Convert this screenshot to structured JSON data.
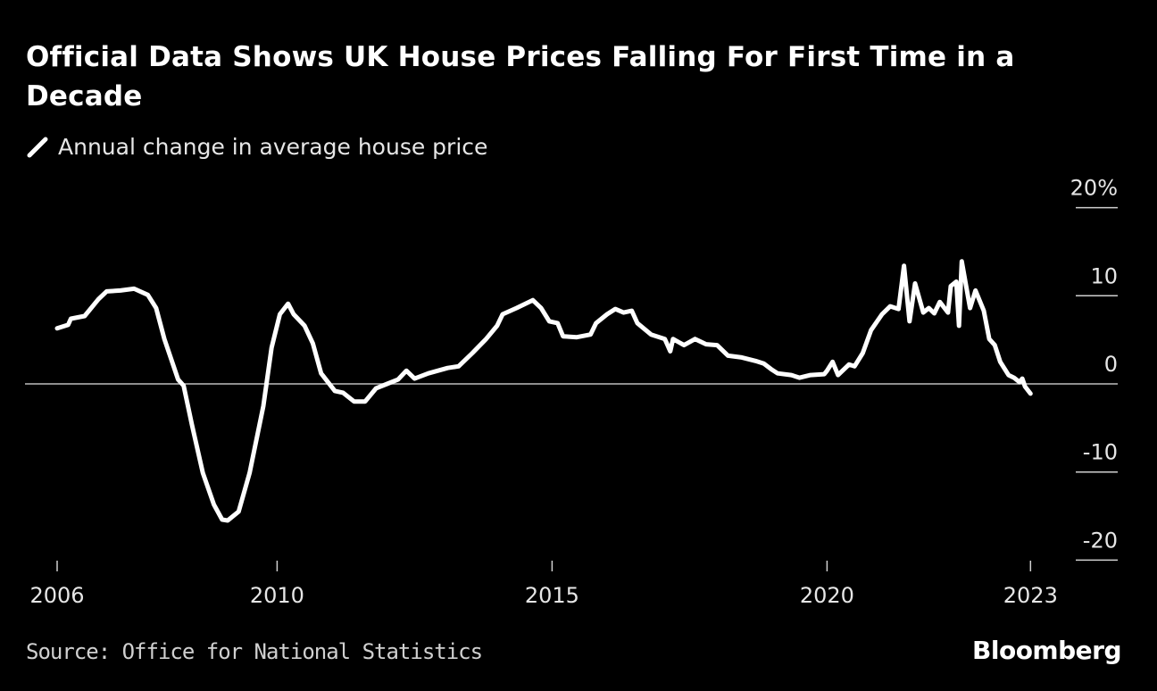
{
  "chart_data": {
    "type": "line",
    "title": "Official Data Shows UK House Prices Falling For First Time in a Decade",
    "series": [
      {
        "name": "Annual change in average house price",
        "color": "#ffffff",
        "points": [
          [
            2006.0,
            6.3
          ],
          [
            2006.2,
            6.7
          ],
          [
            2006.25,
            7.4
          ],
          [
            2006.5,
            7.7
          ],
          [
            2006.75,
            9.6
          ],
          [
            2006.9,
            10.5
          ],
          [
            2007.15,
            10.6
          ],
          [
            2007.4,
            10.8
          ],
          [
            2007.65,
            10.1
          ],
          [
            2007.8,
            8.6
          ],
          [
            2007.95,
            5.1
          ],
          [
            2008.2,
            0.5
          ],
          [
            2008.3,
            -0.2
          ],
          [
            2008.45,
            -4.6
          ],
          [
            2008.65,
            -10.1
          ],
          [
            2008.85,
            -13.7
          ],
          [
            2009.0,
            -15.4
          ],
          [
            2009.1,
            -15.5
          ],
          [
            2009.3,
            -14.5
          ],
          [
            2009.5,
            -10.1
          ],
          [
            2009.75,
            -2.5
          ],
          [
            2009.9,
            4.1
          ],
          [
            2010.05,
            7.9
          ],
          [
            2010.2,
            9.1
          ],
          [
            2010.3,
            7.9
          ],
          [
            2010.5,
            6.6
          ],
          [
            2010.65,
            4.6
          ],
          [
            2010.8,
            1.2
          ],
          [
            2011.05,
            -0.8
          ],
          [
            2011.2,
            -1.0
          ],
          [
            2011.4,
            -2.0
          ],
          [
            2011.6,
            -2.0
          ],
          [
            2011.8,
            -0.5
          ],
          [
            2012.0,
            0.0
          ],
          [
            2012.2,
            0.5
          ],
          [
            2012.35,
            1.5
          ],
          [
            2012.5,
            0.6
          ],
          [
            2012.75,
            1.2
          ],
          [
            2013.1,
            1.8
          ],
          [
            2013.3,
            2.0
          ],
          [
            2013.55,
            3.5
          ],
          [
            2013.8,
            5.1
          ],
          [
            2014.0,
            6.6
          ],
          [
            2014.1,
            7.9
          ],
          [
            2014.35,
            8.6
          ],
          [
            2014.65,
            9.5
          ],
          [
            2014.8,
            8.6
          ],
          [
            2014.95,
            7.1
          ],
          [
            2015.1,
            6.9
          ],
          [
            2015.2,
            5.4
          ],
          [
            2015.45,
            5.3
          ],
          [
            2015.7,
            5.6
          ],
          [
            2015.8,
            6.9
          ],
          [
            2016.0,
            7.9
          ],
          [
            2016.15,
            8.5
          ],
          [
            2016.3,
            8.1
          ],
          [
            2016.45,
            8.3
          ],
          [
            2016.55,
            6.9
          ],
          [
            2016.8,
            5.6
          ],
          [
            2017.05,
            5.1
          ],
          [
            2017.15,
            3.7
          ],
          [
            2017.2,
            5.1
          ],
          [
            2017.4,
            4.4
          ],
          [
            2017.6,
            5.1
          ],
          [
            2017.8,
            4.5
          ],
          [
            2018.0,
            4.4
          ],
          [
            2018.2,
            3.2
          ],
          [
            2018.45,
            3.0
          ],
          [
            2018.7,
            2.6
          ],
          [
            2018.85,
            2.3
          ],
          [
            2019.0,
            1.6
          ],
          [
            2019.1,
            1.2
          ],
          [
            2019.35,
            1.0
          ],
          [
            2019.5,
            0.7
          ],
          [
            2019.7,
            1.0
          ],
          [
            2019.95,
            1.1
          ],
          [
            2020.0,
            1.5
          ],
          [
            2020.1,
            2.5
          ],
          [
            2020.2,
            1.0
          ],
          [
            2020.4,
            2.2
          ],
          [
            2020.5,
            2.0
          ],
          [
            2020.65,
            3.5
          ],
          [
            2020.8,
            6.1
          ],
          [
            2021.0,
            7.9
          ],
          [
            2021.15,
            8.8
          ],
          [
            2021.3,
            8.5
          ],
          [
            2021.4,
            13.4
          ],
          [
            2021.5,
            7.1
          ],
          [
            2021.6,
            11.4
          ],
          [
            2021.75,
            8.1
          ],
          [
            2021.85,
            8.6
          ],
          [
            2021.95,
            8.0
          ],
          [
            2022.05,
            9.3
          ],
          [
            2022.2,
            8.1
          ],
          [
            2022.25,
            11.1
          ],
          [
            2022.35,
            11.6
          ],
          [
            2022.4,
            6.6
          ],
          [
            2022.45,
            13.9
          ],
          [
            2022.6,
            8.6
          ],
          [
            2022.7,
            10.6
          ],
          [
            2022.85,
            8.3
          ],
          [
            2022.95,
            5.1
          ],
          [
            2023.05,
            4.4
          ],
          [
            2023.15,
            2.5
          ],
          [
            2023.3,
            1.0
          ],
          [
            2023.4,
            0.7
          ],
          [
            2023.5,
            0.2
          ],
          [
            2023.55,
            0.6
          ],
          [
            2023.6,
            -0.3
          ],
          [
            2023.7,
            -1.1
          ]
        ]
      }
    ],
    "xlim": [
      2006,
      2023.7
    ],
    "ylim": [
      -20,
      20
    ],
    "x_ticks": [
      {
        "value": 2006,
        "label": "2006"
      },
      {
        "value": 2010,
        "label": "2010"
      },
      {
        "value": 2015,
        "label": "2015"
      },
      {
        "value": 2020,
        "label": "2020"
      },
      {
        "value": 2023.7,
        "label": "2023"
      }
    ],
    "y_ticks": [
      {
        "value": 20,
        "label": "20%"
      },
      {
        "value": 10,
        "label": "10"
      },
      {
        "value": 0,
        "label": "0"
      },
      {
        "value": -10,
        "label": "-10"
      },
      {
        "value": -20,
        "label": "-20"
      }
    ],
    "grid": false,
    "zero_line": true,
    "legend_position": "top-left",
    "source": "Source: Office for National Statistics",
    "brand": "Bloomberg",
    "background": "#000000"
  }
}
